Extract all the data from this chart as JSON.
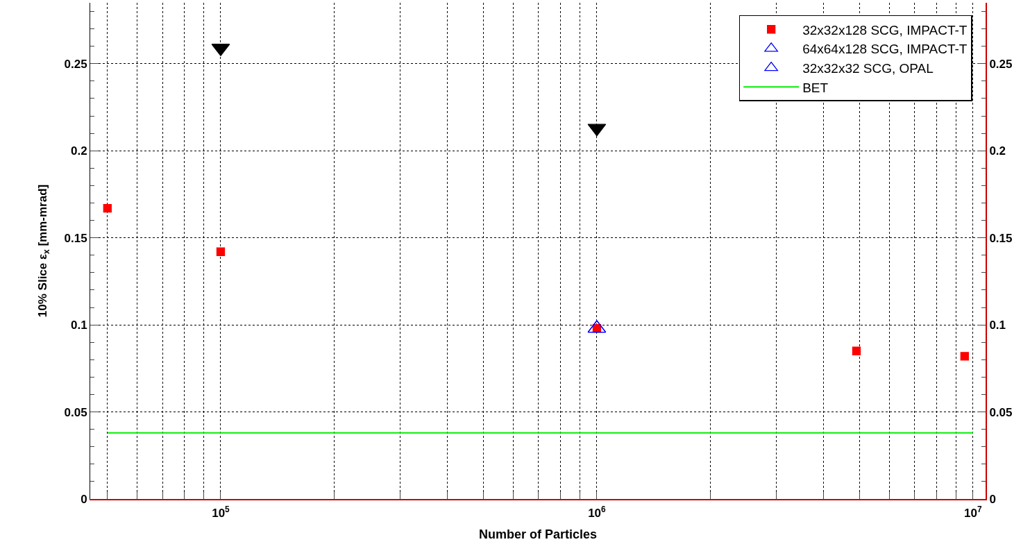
{
  "chart_data": {
    "type": "scatter",
    "xlabel": "Number of Particles",
    "ylabel": "10% Slice ε$_{x}$ [mm-mrad]",
    "log": "x",
    "grid": true,
    "legend": "top right",
    "xlim": [
      45000,
      10800000
    ],
    "xticks": [
      {
        "value": 50000,
        "label": null
      },
      {
        "value": 60000,
        "label": null
      },
      {
        "value": 70000,
        "label": null
      },
      {
        "value": 80000,
        "label": null
      },
      {
        "value": 90000,
        "label": null
      },
      {
        "value": 100000,
        "label": "10$^{5}$"
      },
      {
        "value": 200000,
        "label": null
      },
      {
        "value": 300000,
        "label": null
      },
      {
        "value": 400000,
        "label": null
      },
      {
        "value": 500000,
        "label": null
      },
      {
        "value": 600000,
        "label": null
      },
      {
        "value": 700000,
        "label": null
      },
      {
        "value": 800000,
        "label": null
      },
      {
        "value": 900000,
        "label": null
      },
      {
        "value": 1000000,
        "label": "10$^{6}$"
      },
      {
        "value": 2000000,
        "label": null
      },
      {
        "value": 3000000,
        "label": null
      },
      {
        "value": 4000000,
        "label": null
      },
      {
        "value": 5000000,
        "label": null
      },
      {
        "value": 6000000,
        "label": null
      },
      {
        "value": 7000000,
        "label": null
      },
      {
        "value": 8000000,
        "label": null
      },
      {
        "value": 9000000,
        "label": null
      },
      {
        "value": 10000000,
        "label": "10$^{7}$"
      }
    ],
    "ylim": [
      0,
      0.285
    ],
    "yticks": [
      0,
      0.05,
      0.1,
      0.15,
      0.2,
      0.25
    ],
    "y2lim": [
      0,
      0.285
    ],
    "y2ticks": [
      0,
      0.05,
      0.1,
      0.15,
      0.2,
      0.25
    ],
    "series": [
      {
        "name": "32x32x128 SCG, IMPACT-T",
        "color": "#ff0000",
        "marker": "square",
        "x": [
          50000,
          100000,
          1000000,
          4900000,
          9500000
        ],
        "values": [
          0.167,
          0.142,
          0.098,
          0.085,
          0.082
        ]
      },
      {
        "name": "64x64x128 SCG, IMPACT-T",
        "color": "#0000ff",
        "marker": "triangle",
        "x": [
          1000000
        ],
        "values": [
          0.098
        ]
      },
      {
        "name": "32x32x32 SCG, OPAL",
        "color": "#0000ff",
        "marker": "triangle",
        "x": [
          1000000
        ],
        "values": [
          0.098
        ]
      },
      {
        "name": "BET",
        "type": "line",
        "color": "#00ee00",
        "marker": "none",
        "x": [
          50000,
          10000000
        ],
        "values": [
          0.038,
          0.038
        ]
      },
      {
        "color": "#000000",
        "marker": "triangle-down",
        "x": [
          100000,
          1000000
        ],
        "values": [
          0.259,
          0.213
        ]
      }
    ]
  }
}
